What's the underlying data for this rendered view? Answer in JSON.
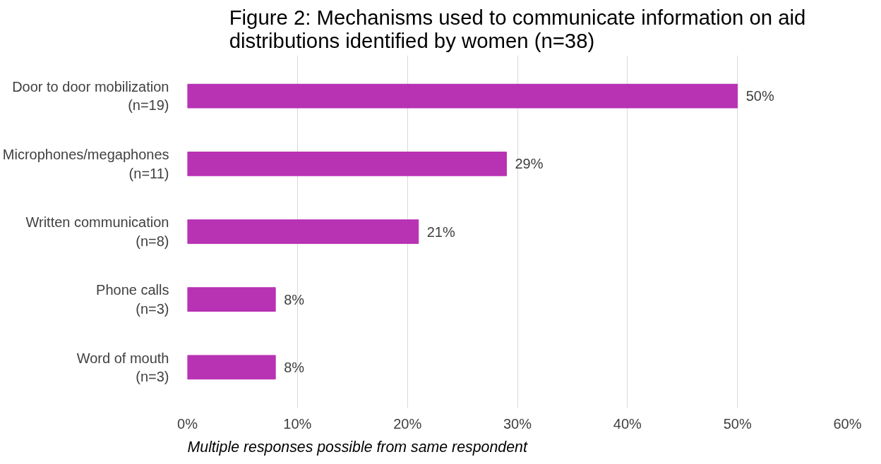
{
  "chart_data": {
    "type": "bar",
    "orientation": "horizontal",
    "title": "Figure 2: Mechanisms used to communicate information on aid distributions identified by women (n=38)",
    "categories": [
      "Door to door mobilization (n=19)",
      "Microphones/megaphones (n=11)",
      "Written communication (n=8)",
      "Phone calls (n=3)",
      "Word of mouth (n=3)"
    ],
    "values": [
      50,
      29,
      21,
      8,
      8
    ],
    "value_labels": [
      "50%",
      "29%",
      "21%",
      "8%",
      "8%"
    ],
    "color": "#b832b4",
    "xlim": [
      0,
      60
    ],
    "xticks": [
      {
        "value": 0,
        "label": "0%"
      },
      {
        "value": 10,
        "label": "10%"
      },
      {
        "value": 20,
        "label": "20%"
      },
      {
        "value": 30,
        "label": "30%"
      },
      {
        "value": 40,
        "label": "40%"
      },
      {
        "value": 50,
        "label": "50%"
      },
      {
        "value": 60,
        "label": "60%"
      }
    ],
    "grid": "x",
    "annotations": [
      "Multiple responses possible from same respondent"
    ]
  }
}
